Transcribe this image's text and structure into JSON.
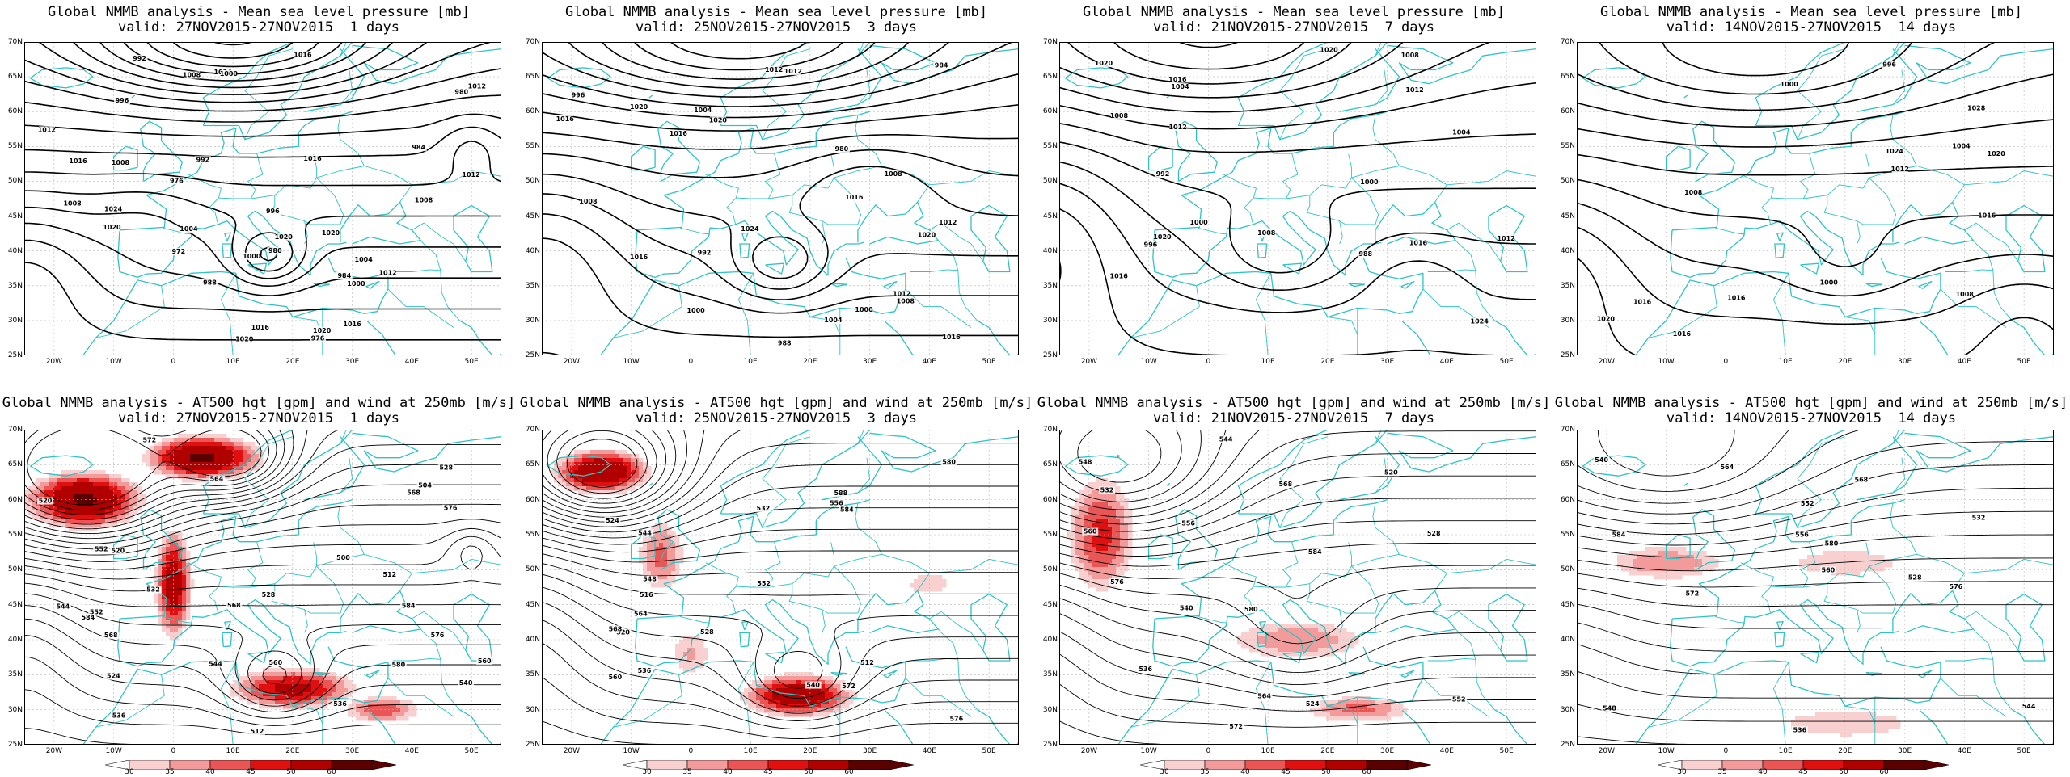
{
  "mslp_title": "Global NMMB analysis - Mean sea level pressure [mb]",
  "z500_title": "Global NMMB analysis - AT500 hgt [gpm] and wind at 250mb [m/s]",
  "valid_lines": [
    "valid: 27NOV2015-27NOV2015  1 days",
    "valid: 25NOV2015-27NOV2015  3 days",
    "valid: 21NOV2015-27NOV2015  7 days",
    "valid: 14NOV2015-27NOV2015  14 days"
  ],
  "lat_labels": [
    "70N",
    "65N",
    "60N",
    "55N",
    "50N",
    "45N",
    "40N",
    "35N",
    "30N",
    "25N"
  ],
  "lon_labels": [
    "20W",
    "10W",
    "0",
    "10E",
    "20E",
    "30E",
    "40E",
    "50E"
  ],
  "colorbar_labels": [
    "30",
    "35",
    "40",
    "45",
    "50",
    "60"
  ],
  "colors": {
    "coast": "#2ec4c4",
    "contour": "#000000",
    "wind_levels": [
      "#ffffff",
      "#f9d0d0",
      "#f39a9a",
      "#ea5555",
      "#e01010",
      "#b00000",
      "#5a0000"
    ]
  },
  "panels": [
    {
      "row": "mslp",
      "period": "1 days",
      "labels": [
        "976",
        "980",
        "984",
        "988",
        "992",
        "996",
        "1000",
        "1004",
        "1008",
        "1012",
        "1016",
        "1020",
        "1024",
        "972",
        "976",
        "980",
        "984",
        "992",
        "996",
        "1000",
        "1004",
        "1008",
        "1012",
        "1016",
        "1020",
        "1020",
        "1008",
        "1012",
        "1016",
        "1020",
        "1024",
        "1000",
        "1008",
        "1012",
        "1016",
        "1016",
        "1020"
      ]
    },
    {
      "row": "mslp",
      "period": "3 days",
      "labels": [
        "980",
        "984",
        "988",
        "992",
        "996",
        "1000",
        "1004",
        "1008",
        "1012",
        "1016",
        "1020",
        "1024",
        "1008",
        "1012",
        "1016",
        "1000",
        "1004",
        "1008",
        "1012",
        "1016",
        "1020",
        "1016",
        "1020",
        "1012",
        "1016"
      ]
    },
    {
      "row": "mslp",
      "period": "7 days",
      "labels": [
        "988",
        "992",
        "996",
        "1000",
        "1004",
        "1008",
        "1012",
        "1016",
        "1020",
        "1020",
        "1008",
        "1012",
        "1016",
        "1000",
        "1004",
        "1008",
        "1012",
        "1016",
        "1020",
        "1024"
      ]
    },
    {
      "row": "mslp",
      "period": "14 days",
      "labels": [
        "996",
        "1000",
        "1004",
        "1008",
        "1012",
        "1016",
        "1020",
        "1024",
        "1028",
        "1016",
        "1016",
        "1020",
        "1000",
        "1008",
        "1016"
      ]
    },
    {
      "row": "z500",
      "period": "1 days",
      "labels": [
        "500",
        "504",
        "512",
        "520",
        "528",
        "536",
        "544",
        "552",
        "560",
        "568",
        "576",
        "584",
        "512",
        "520",
        "524",
        "528",
        "532",
        "536",
        "540",
        "544",
        "552",
        "560",
        "564",
        "568",
        "572",
        "576",
        "580",
        "584",
        "568"
      ]
    },
    {
      "row": "z500",
      "period": "3 days",
      "labels": [
        "512",
        "516",
        "520",
        "524",
        "528",
        "532",
        "536",
        "540",
        "544",
        "548",
        "552",
        "556",
        "560",
        "564",
        "568",
        "572",
        "576",
        "580",
        "584",
        "588"
      ]
    },
    {
      "row": "z500",
      "period": "7 days",
      "labels": [
        "520",
        "524",
        "528",
        "532",
        "536",
        "540",
        "544",
        "548",
        "552",
        "556",
        "560",
        "564",
        "568",
        "572",
        "576",
        "580",
        "584"
      ]
    },
    {
      "row": "z500",
      "period": "14 days",
      "labels": [
        "528",
        "532",
        "536",
        "540",
        "544",
        "548",
        "552",
        "556",
        "560",
        "564",
        "568",
        "572",
        "576",
        "580",
        "584"
      ]
    }
  ]
}
